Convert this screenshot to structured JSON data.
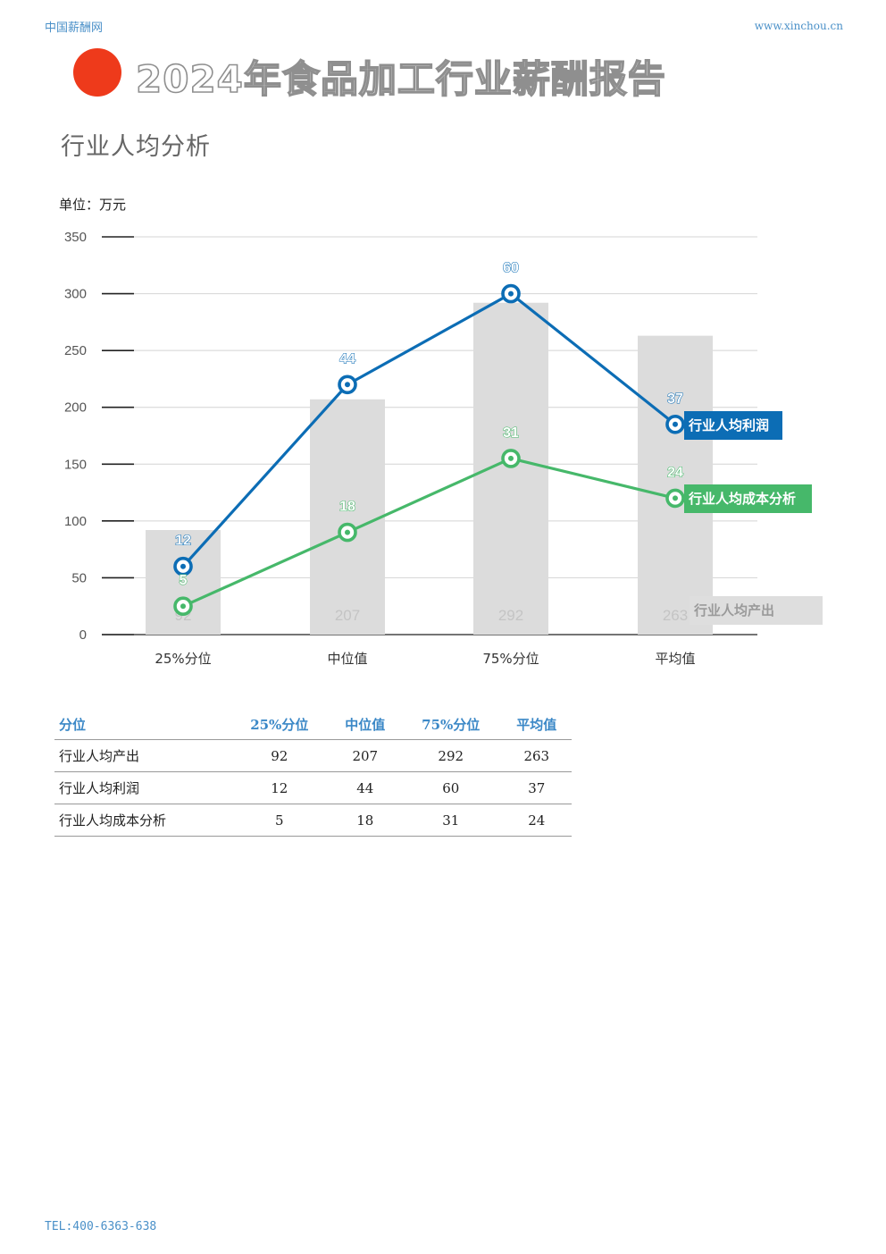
{
  "header": {
    "site_name": "中国薪酬网",
    "site_url": "www.xinchou.cn"
  },
  "title": "2024年食品加工行业薪酬报告",
  "section_title": "行业人均分析",
  "unit_label": "单位：万元",
  "colors": {
    "accent_dot": "#ee3a1b",
    "profit": "#0c6db5",
    "cost": "#46b86a",
    "output_bar": "#dcdcdc",
    "table_header": "#3b88c7"
  },
  "chart_data": {
    "type": "bar",
    "categories": [
      "25%分位",
      "中位值",
      "75%分位",
      "平均值"
    ],
    "ylim": [
      0,
      350
    ],
    "yticks": [
      0,
      50,
      100,
      150,
      200,
      250,
      300,
      350
    ],
    "grid": true,
    "series": [
      {
        "name": "行业人均产出",
        "type": "bar",
        "values": [
          92,
          207,
          292,
          263
        ]
      },
      {
        "name": "行业人均利润",
        "type": "line",
        "values": [
          12,
          44,
          60,
          37
        ]
      },
      {
        "name": "行业人均成本分析",
        "type": "line",
        "values": [
          5,
          18,
          31,
          24
        ]
      }
    ],
    "line_positions": {
      "行业人均利润": [
        60,
        220,
        300,
        185
      ],
      "行业人均成本分析": [
        25,
        90,
        155,
        120
      ]
    },
    "legend": "labels at line ends (right)"
  },
  "table": {
    "headers": [
      "分位",
      "25%分位",
      "中位值",
      "75%分位",
      "平均值"
    ],
    "rows": [
      [
        "行业人均产出",
        "92",
        "207",
        "292",
        "263"
      ],
      [
        "行业人均利润",
        "12",
        "44",
        "60",
        "37"
      ],
      [
        "行业人均成本分析",
        "5",
        "18",
        "31",
        "24"
      ]
    ]
  },
  "footer": {
    "tel": "TEL:400-6363-638"
  }
}
